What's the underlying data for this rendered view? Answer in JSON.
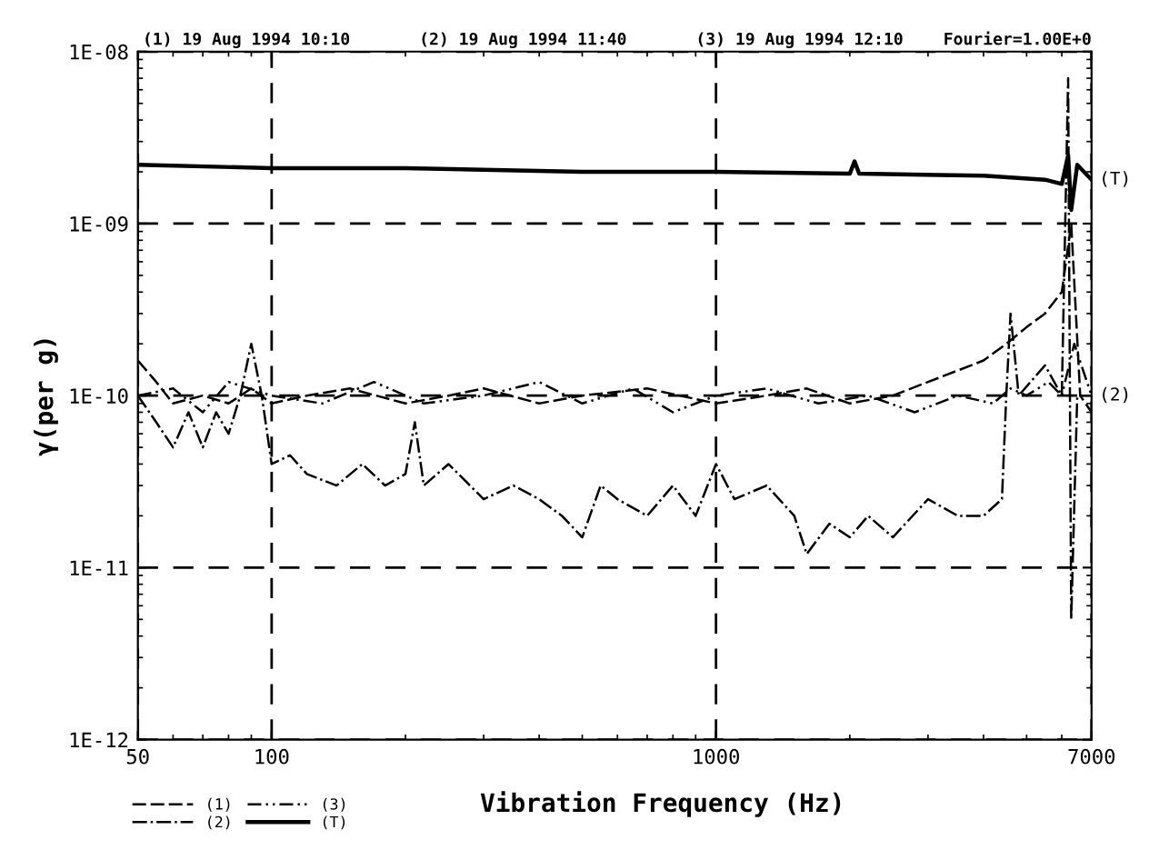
{
  "chart_data": {
    "type": "line",
    "xlabel": "Vibration Frequency (Hz)",
    "ylabel": "γ(per g)",
    "annotations": [
      "(1) 19 Aug 1994 10:10",
      "(2) 19 Aug 1994 11:40",
      "(3) 19 Aug 1994 12:10",
      "Fourier=1.00E+0",
      "(T)",
      "(2)"
    ],
    "log": "xy",
    "grid": true,
    "legend": "bottom",
    "xlim": [
      50,
      7000
    ],
    "xticks": [
      50,
      100,
      1000,
      7000
    ],
    "ylim": [
      1e-12,
      1e-08
    ],
    "yticks": [
      {
        "value": 1e-12,
        "label": "1E-12"
      },
      {
        "value": 1e-11,
        "label": "1E-11"
      },
      {
        "value": 1e-10,
        "label": "1E-10"
      },
      {
        "value": 1e-09,
        "label": "1E-09"
      },
      {
        "value": 1e-08,
        "label": "1E-08"
      }
    ],
    "series": [
      {
        "name": "(1)",
        "color": "#000000",
        "line_style": "dashed",
        "x": [
          50,
          55,
          60,
          70,
          80,
          90,
          100,
          120,
          150,
          200,
          250,
          300,
          400,
          500,
          700,
          1000,
          1300,
          1600,
          2000,
          2500,
          3000,
          3500,
          4000,
          4500,
          5000,
          5500,
          6000,
          6300,
          6600,
          7000
        ],
        "values": [
          1.6e-10,
          1.2e-10,
          9e-11,
          1e-10,
          9e-11,
          1.1e-10,
          9e-11,
          1e-10,
          1.1e-10,
          9e-11,
          1e-10,
          1.1e-10,
          9e-11,
          1e-10,
          1.1e-10,
          9e-11,
          1e-10,
          1.1e-10,
          9e-11,
          1e-10,
          1.2e-10,
          1.4e-10,
          1.6e-10,
          2e-10,
          2.5e-10,
          3e-10,
          4e-10,
          1e-09,
          1e-10,
          8e-11
        ]
      },
      {
        "name": "(2)",
        "color": "#000000",
        "line_style": "dashdot",
        "x": [
          50,
          55,
          60,
          65,
          70,
          75,
          80,
          85,
          90,
          95,
          100,
          110,
          120,
          140,
          160,
          180,
          200,
          210,
          220,
          250,
          300,
          350,
          400,
          450,
          500,
          550,
          600,
          700,
          800,
          900,
          1000,
          1100,
          1300,
          1500,
          1600,
          1800,
          2000,
          2200,
          2500,
          3000,
          3500,
          4000,
          4400,
          4500,
          4600,
          4800,
          5500,
          6000,
          6200,
          6300,
          6500,
          7000
        ],
        "values": [
          1e-10,
          7e-11,
          5e-11,
          8e-11,
          5e-11,
          8e-11,
          6e-11,
          1e-10,
          2e-10,
          1e-10,
          4e-11,
          4.5e-11,
          3.5e-11,
          3e-11,
          4e-11,
          3e-11,
          3.5e-11,
          7e-11,
          3e-11,
          4e-11,
          2.5e-11,
          3e-11,
          2.5e-11,
          2e-11,
          1.5e-11,
          3e-11,
          2.5e-11,
          2e-11,
          3e-11,
          2e-11,
          4e-11,
          2.5e-11,
          3e-11,
          2e-11,
          1.2e-11,
          1.8e-11,
          1.5e-11,
          2e-11,
          1.5e-11,
          2.5e-11,
          2e-11,
          2e-11,
          2.5e-11,
          1e-10,
          3e-10,
          1e-10,
          1.5e-10,
          1e-10,
          7e-09,
          5e-12,
          1e-10,
          1e-10
        ]
      },
      {
        "name": "(3)",
        "color": "#000000",
        "line_style": "dotted",
        "x": [
          50,
          60,
          70,
          80,
          100,
          130,
          170,
          220,
          300,
          400,
          500,
          650,
          800,
          1000,
          1300,
          1700,
          2200,
          2800,
          3500,
          4200,
          4600,
          5000,
          5600,
          6000,
          6400,
          7000
        ],
        "values": [
          1e-10,
          1.1e-10,
          8e-11,
          1.2e-10,
          1e-10,
          9e-11,
          1.2e-10,
          9e-11,
          1e-10,
          1.2e-10,
          9e-11,
          1.1e-10,
          8e-11,
          1e-10,
          1.1e-10,
          9e-11,
          1e-10,
          8e-11,
          1e-10,
          9e-11,
          1.1e-10,
          1e-10,
          1.2e-10,
          1e-10,
          2e-10,
          1e-10
        ]
      },
      {
        "name": "(T)",
        "color": "#000000",
        "line_style": "solid",
        "x": [
          50,
          100,
          200,
          500,
          1000,
          2000,
          2050,
          2100,
          4000,
          5500,
          6000,
          6200,
          6300,
          6500,
          7000
        ],
        "values": [
          2.2e-09,
          2.1e-09,
          2.1e-09,
          2e-09,
          2e-09,
          1.95e-09,
          2.3e-09,
          1.95e-09,
          1.9e-09,
          1.8e-09,
          1.7e-09,
          2.5e-09,
          1.2e-09,
          2.2e-09,
          1.8e-09
        ]
      }
    ]
  }
}
